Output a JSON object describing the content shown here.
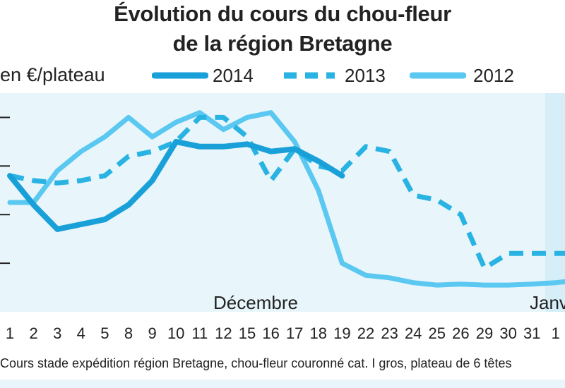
{
  "chart_data": {
    "type": "line",
    "title": [
      "Évolution du cours du chou-fleur",
      "de la région Bretagne"
    ],
    "ylabel": "en €/plateau",
    "x_ticks": [
      "1",
      "2",
      "3",
      "4",
      "5",
      "8",
      "9",
      "10",
      "11",
      "12",
      "15",
      "16",
      "17",
      "18",
      "19",
      "22",
      "23",
      "24",
      "25",
      "26",
      "29",
      "30",
      "31",
      "1"
    ],
    "month_labels": [
      "Décembre",
      "Janv"
    ],
    "grid": true,
    "legend_position": "top",
    "series": [
      {
        "name": "2014",
        "style": "solid-thick",
        "color": "#1aa0d8",
        "x": [
          0,
          1,
          2,
          3,
          4,
          5,
          6,
          7,
          8,
          9,
          10,
          11,
          12,
          13,
          14
        ],
        "values": [
          0.48,
          0.42,
          0.37,
          0.38,
          0.39,
          0.42,
          0.47,
          0.55,
          0.54,
          0.54,
          0.545,
          0.53,
          0.535,
          0.51,
          0.48
        ]
      },
      {
        "name": "2013",
        "style": "dashed",
        "color": "#29b3e3",
        "x": [
          0,
          1,
          2,
          3,
          4,
          5,
          6,
          7,
          8,
          9,
          10,
          11,
          12,
          13,
          14,
          15,
          16,
          17,
          18,
          19,
          20,
          21,
          22,
          23,
          24
        ],
        "values": [
          0.48,
          0.47,
          0.465,
          0.47,
          0.48,
          0.52,
          0.53,
          0.55,
          0.6,
          0.6,
          0.56,
          0.47,
          0.535,
          0.5,
          0.49,
          0.54,
          0.53,
          0.44,
          0.43,
          0.4,
          0.29,
          0.32,
          0.32,
          0.32,
          0.32
        ]
      },
      {
        "name": "2012",
        "style": "solid",
        "color": "#5ac8f0",
        "x": [
          0,
          1,
          2,
          3,
          4,
          5,
          6,
          7,
          8,
          9,
          10,
          11,
          12,
          13,
          14,
          15,
          16,
          17,
          18,
          19,
          20,
          21,
          22,
          23,
          24
        ],
        "values": [
          0.425,
          0.425,
          0.49,
          0.53,
          0.56,
          0.6,
          0.56,
          0.59,
          0.61,
          0.575,
          0.6,
          0.61,
          0.55,
          0.45,
          0.3,
          0.275,
          0.27,
          0.26,
          0.255,
          0.257,
          0.255,
          0.255,
          0.257,
          0.26,
          0.265
        ]
      }
    ],
    "ylim": [
      0.2,
      0.65
    ]
  },
  "footnote": "Cours stade expédition région Bretagne, chou-fleur couronné cat. I gros, plateau de 6 têtes"
}
